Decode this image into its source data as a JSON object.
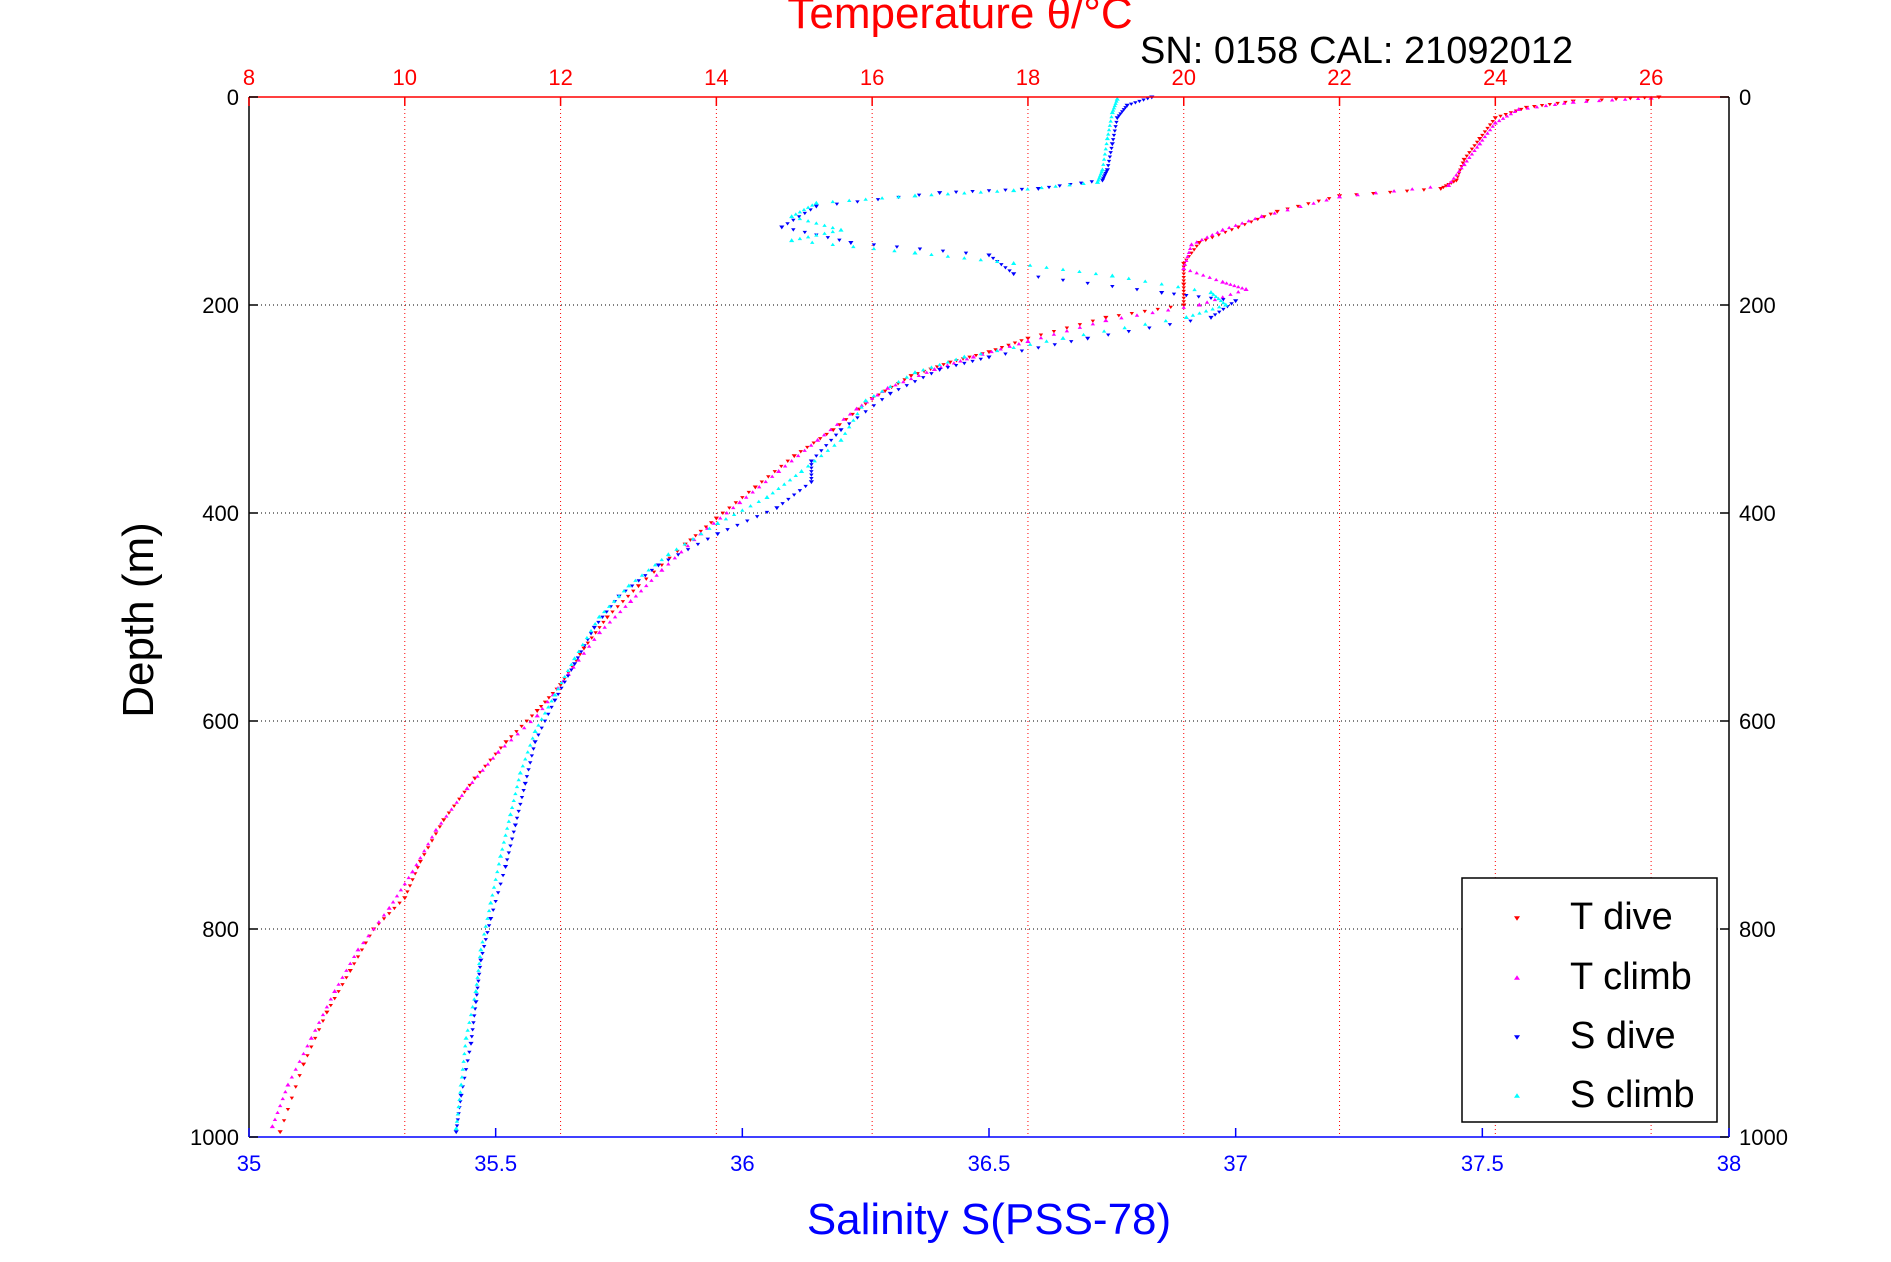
{
  "chart_data": {
    "type": "scatter",
    "title": "Temperature θ/°C",
    "info_text": "SN: 0158  CAL: 21092012",
    "xlabel_bottom": "Salinity S(PSS-78)",
    "ylabel": "Depth (m)",
    "x_bottom": {
      "range": [
        35,
        38
      ],
      "ticks": [
        35,
        35.5,
        36,
        36.5,
        37,
        37.5,
        38
      ],
      "tick_labels": [
        "35",
        "35.5",
        "36",
        "36.5",
        "37",
        "37.5",
        "38"
      ],
      "color": "#0000ff"
    },
    "x_top": {
      "range": [
        8,
        27
      ],
      "ticks": [
        8,
        10,
        12,
        14,
        16,
        18,
        20,
        22,
        24,
        26
      ],
      "tick_labels": [
        "8",
        "10",
        "12",
        "14",
        "16",
        "18",
        "20",
        "22",
        "24",
        "26"
      ],
      "color": "#ff0000",
      "grid": true
    },
    "y": {
      "range": [
        0,
        1000
      ],
      "reversed": true,
      "ticks": [
        0,
        200,
        400,
        600,
        800,
        1000
      ],
      "tick_labels": [
        "0",
        "200",
        "400",
        "600",
        "800",
        "1000"
      ],
      "grid": true
    },
    "legend": {
      "position": "bottom-right",
      "entries": [
        {
          "label": "T dive",
          "color": "#ff0000",
          "marker": "triangle-down"
        },
        {
          "label": "T climb",
          "color": "#ff00ff",
          "marker": "triangle-up"
        },
        {
          "label": "S dive",
          "color": "#0000ff",
          "marker": "triangle-down"
        },
        {
          "label": "S climb",
          "color": "#00ffff",
          "marker": "triangle-up"
        }
      ]
    },
    "series": [
      {
        "name": "T dive",
        "axis": "top",
        "color": "#ff0000",
        "marker": "triangle-down",
        "points": [
          [
            26.1,
            0
          ],
          [
            25.0,
            4
          ],
          [
            24.4,
            10
          ],
          [
            24.0,
            20
          ],
          [
            23.8,
            40
          ],
          [
            23.6,
            60
          ],
          [
            23.5,
            80
          ],
          [
            23.3,
            88
          ],
          [
            22.0,
            95
          ],
          [
            21.2,
            110
          ],
          [
            20.7,
            125
          ],
          [
            20.2,
            140
          ],
          [
            20.0,
            160
          ],
          [
            20.0,
            180
          ],
          [
            20.0,
            200
          ],
          [
            19.0,
            212
          ],
          [
            18.0,
            232
          ],
          [
            17.5,
            245
          ],
          [
            17.0,
            255
          ],
          [
            16.5,
            268
          ],
          [
            16.0,
            290
          ],
          [
            15.5,
            320
          ],
          [
            15.0,
            345
          ],
          [
            14.5,
            375
          ],
          [
            14.0,
            405
          ],
          [
            13.6,
            430
          ],
          [
            13.0,
            470
          ],
          [
            12.6,
            500
          ],
          [
            12.3,
            530
          ],
          [
            12.0,
            565
          ],
          [
            11.7,
            590
          ],
          [
            11.3,
            620
          ],
          [
            10.9,
            655
          ],
          [
            10.5,
            695
          ],
          [
            10.2,
            735
          ],
          [
            10.0,
            770
          ],
          [
            9.6,
            800
          ],
          [
            9.3,
            840
          ],
          [
            9.0,
            880
          ],
          [
            8.7,
            930
          ],
          [
            8.4,
            995
          ]
        ]
      },
      {
        "name": "T climb",
        "axis": "top",
        "color": "#ff00ff",
        "marker": "triangle-up",
        "points": [
          [
            26.0,
            1
          ],
          [
            25.0,
            5
          ],
          [
            24.3,
            12
          ],
          [
            24.0,
            25
          ],
          [
            23.8,
            45
          ],
          [
            23.6,
            65
          ],
          [
            23.4,
            85
          ],
          [
            22.0,
            96
          ],
          [
            21.0,
            115
          ],
          [
            20.5,
            128
          ],
          [
            20.1,
            142
          ],
          [
            20.0,
            165
          ],
          [
            20.5,
            178
          ],
          [
            20.8,
            185
          ],
          [
            20.2,
            200
          ],
          [
            19.0,
            215
          ],
          [
            18.0,
            235
          ],
          [
            17.3,
            250
          ],
          [
            16.8,
            262
          ],
          [
            16.2,
            280
          ],
          [
            15.8,
            300
          ],
          [
            15.3,
            330
          ],
          [
            14.8,
            360
          ],
          [
            14.3,
            390
          ],
          [
            13.8,
            420
          ],
          [
            13.3,
            455
          ],
          [
            12.9,
            485
          ],
          [
            12.5,
            515
          ],
          [
            12.1,
            555
          ],
          [
            11.7,
            595
          ],
          [
            11.2,
            630
          ],
          [
            10.8,
            665
          ],
          [
            10.4,
            705
          ],
          [
            10.1,
            745
          ],
          [
            9.8,
            780
          ],
          [
            9.4,
            820
          ],
          [
            9.1,
            860
          ],
          [
            8.8,
            905
          ],
          [
            8.5,
            950
          ],
          [
            8.3,
            990
          ]
        ]
      },
      {
        "name": "S dive",
        "axis": "bottom",
        "color": "#0000ff",
        "marker": "triangle-down",
        "points": [
          [
            36.83,
            0
          ],
          [
            36.78,
            8
          ],
          [
            36.76,
            20
          ],
          [
            36.75,
            45
          ],
          [
            36.74,
            70
          ],
          [
            36.73,
            80
          ],
          [
            36.6,
            88
          ],
          [
            36.4,
            92
          ],
          [
            36.15,
            105
          ],
          [
            36.08,
            125
          ],
          [
            36.22,
            140
          ],
          [
            36.5,
            152
          ],
          [
            36.55,
            170
          ],
          [
            36.85,
            188
          ],
          [
            37.0,
            196
          ],
          [
            36.95,
            212
          ],
          [
            36.7,
            232
          ],
          [
            36.5,
            250
          ],
          [
            36.4,
            262
          ],
          [
            36.3,
            285
          ],
          [
            36.2,
            320
          ],
          [
            36.14,
            350
          ],
          [
            36.14,
            370
          ],
          [
            36.07,
            395
          ],
          [
            35.95,
            420
          ],
          [
            35.83,
            450
          ],
          [
            35.75,
            480
          ],
          [
            35.7,
            510
          ],
          [
            35.66,
            545
          ],
          [
            35.62,
            580
          ],
          [
            35.58,
            620
          ],
          [
            35.56,
            660
          ],
          [
            35.54,
            700
          ],
          [
            35.52,
            740
          ],
          [
            35.49,
            790
          ],
          [
            35.47,
            830
          ],
          [
            35.46,
            870
          ],
          [
            35.45,
            910
          ],
          [
            35.43,
            960
          ],
          [
            35.42,
            995
          ]
        ]
      },
      {
        "name": "S climb",
        "axis": "bottom",
        "color": "#00ffff",
        "marker": "triangle-up",
        "points": [
          [
            36.76,
            2
          ],
          [
            36.75,
            15
          ],
          [
            36.74,
            40
          ],
          [
            36.73,
            70
          ],
          [
            36.72,
            82
          ],
          [
            36.55,
            90
          ],
          [
            36.35,
            95
          ],
          [
            36.15,
            102
          ],
          [
            36.1,
            115
          ],
          [
            36.2,
            128
          ],
          [
            36.1,
            138
          ],
          [
            36.35,
            150
          ],
          [
            36.55,
            160
          ],
          [
            36.75,
            172
          ],
          [
            36.95,
            188
          ],
          [
            36.98,
            200
          ],
          [
            36.9,
            212
          ],
          [
            36.65,
            232
          ],
          [
            36.45,
            250
          ],
          [
            36.35,
            265
          ],
          [
            36.25,
            292
          ],
          [
            36.2,
            330
          ],
          [
            36.12,
            360
          ],
          [
            36.05,
            385
          ],
          [
            35.95,
            410
          ],
          [
            35.85,
            440
          ],
          [
            35.77,
            470
          ],
          [
            35.71,
            500
          ],
          [
            35.66,
            540
          ],
          [
            35.62,
            575
          ],
          [
            35.58,
            610
          ],
          [
            35.55,
            650
          ],
          [
            35.53,
            690
          ],
          [
            35.51,
            730
          ],
          [
            35.49,
            775
          ],
          [
            35.47,
            820
          ],
          [
            35.46,
            860
          ],
          [
            35.44,
            905
          ],
          [
            35.43,
            950
          ],
          [
            35.42,
            992
          ]
        ]
      }
    ]
  }
}
